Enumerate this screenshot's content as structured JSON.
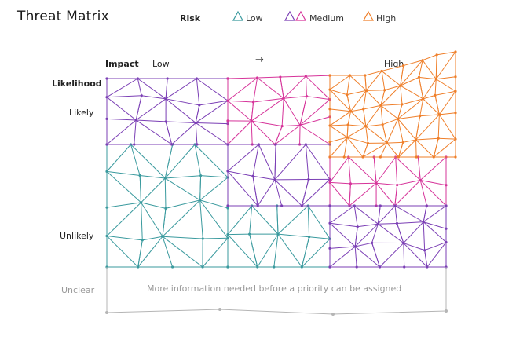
{
  "title": "Threat Matrix",
  "legend": {
    "title": "Risk",
    "items": [
      {
        "label": "Low",
        "color": "#3a9a9e",
        "icon": "triangle-outline-icon",
        "count": 1
      },
      {
        "label": "Medium",
        "colors": [
          "#7b3fb5",
          "#d6349a"
        ],
        "icon": "double-triangle-outline-icon",
        "count": 2
      },
      {
        "label": "High",
        "color": "#ef7f2a",
        "icon": "triangle-outline-icon",
        "count": 1
      }
    ]
  },
  "axes": {
    "impact_label": "Impact",
    "impact_low": "Low",
    "impact_arrow": "→",
    "impact_high": "High",
    "likelihood_label": "Likelihood",
    "likely": "Likely",
    "unlikely": "Unlikely",
    "unclear": "Unclear"
  },
  "unclear_note": "More information needed before a priority can be assigned",
  "colors": {
    "low": "#3a9a9e",
    "medium_purple": "#7b3fb5",
    "medium_pink": "#d6349a",
    "high": "#ef7f2a",
    "unclear": "#b5b5b5"
  }
}
